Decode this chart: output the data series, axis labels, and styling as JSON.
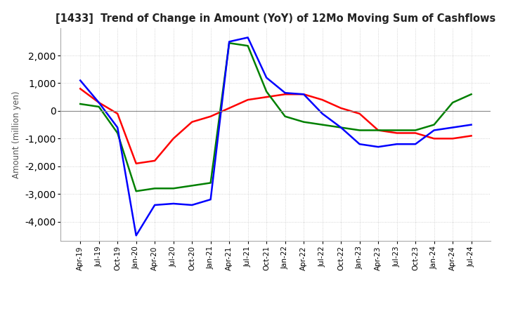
{
  "title": "[1433]  Trend of Change in Amount (YoY) of 12Mo Moving Sum of Cashflows",
  "ylabel": "Amount (million yen)",
  "ylim": [
    -4700,
    3000
  ],
  "yticks": [
    -4000,
    -3000,
    -2000,
    -1000,
    0,
    1000,
    2000
  ],
  "x_labels": [
    "Apr-19",
    "Jul-19",
    "Oct-19",
    "Jan-20",
    "Apr-20",
    "Jul-20",
    "Oct-20",
    "Jan-21",
    "Apr-21",
    "Jul-21",
    "Oct-21",
    "Jan-22",
    "Apr-22",
    "Jul-22",
    "Oct-22",
    "Jan-23",
    "Apr-23",
    "Jul-23",
    "Oct-23",
    "Jan-24",
    "Apr-24",
    "Jul-24"
  ],
  "operating": [
    800,
    300,
    -100,
    -1900,
    -1800,
    -1000,
    -400,
    -200,
    100,
    400,
    500,
    600,
    600,
    400,
    100,
    -100,
    -700,
    -800,
    -800,
    -1000,
    -1000,
    -900
  ],
  "investing": [
    250,
    150,
    -800,
    -2900,
    -2800,
    -2800,
    -2700,
    -2600,
    2450,
    2350,
    700,
    -200,
    -400,
    -500,
    -600,
    -700,
    -700,
    -700,
    -700,
    -500,
    300,
    600
  ],
  "free": [
    1100,
    300,
    -600,
    -4500,
    -3400,
    -3350,
    -3400,
    -3200,
    2500,
    2650,
    1200,
    650,
    600,
    -100,
    -600,
    -1200,
    -1300,
    -1200,
    -1200,
    -700,
    -600,
    -500
  ],
  "operating_color": "#ff0000",
  "investing_color": "#008000",
  "free_color": "#0000ff",
  "bg_color": "#ffffff",
  "grid_color": "#c8c8c8",
  "title_color": "#222222"
}
